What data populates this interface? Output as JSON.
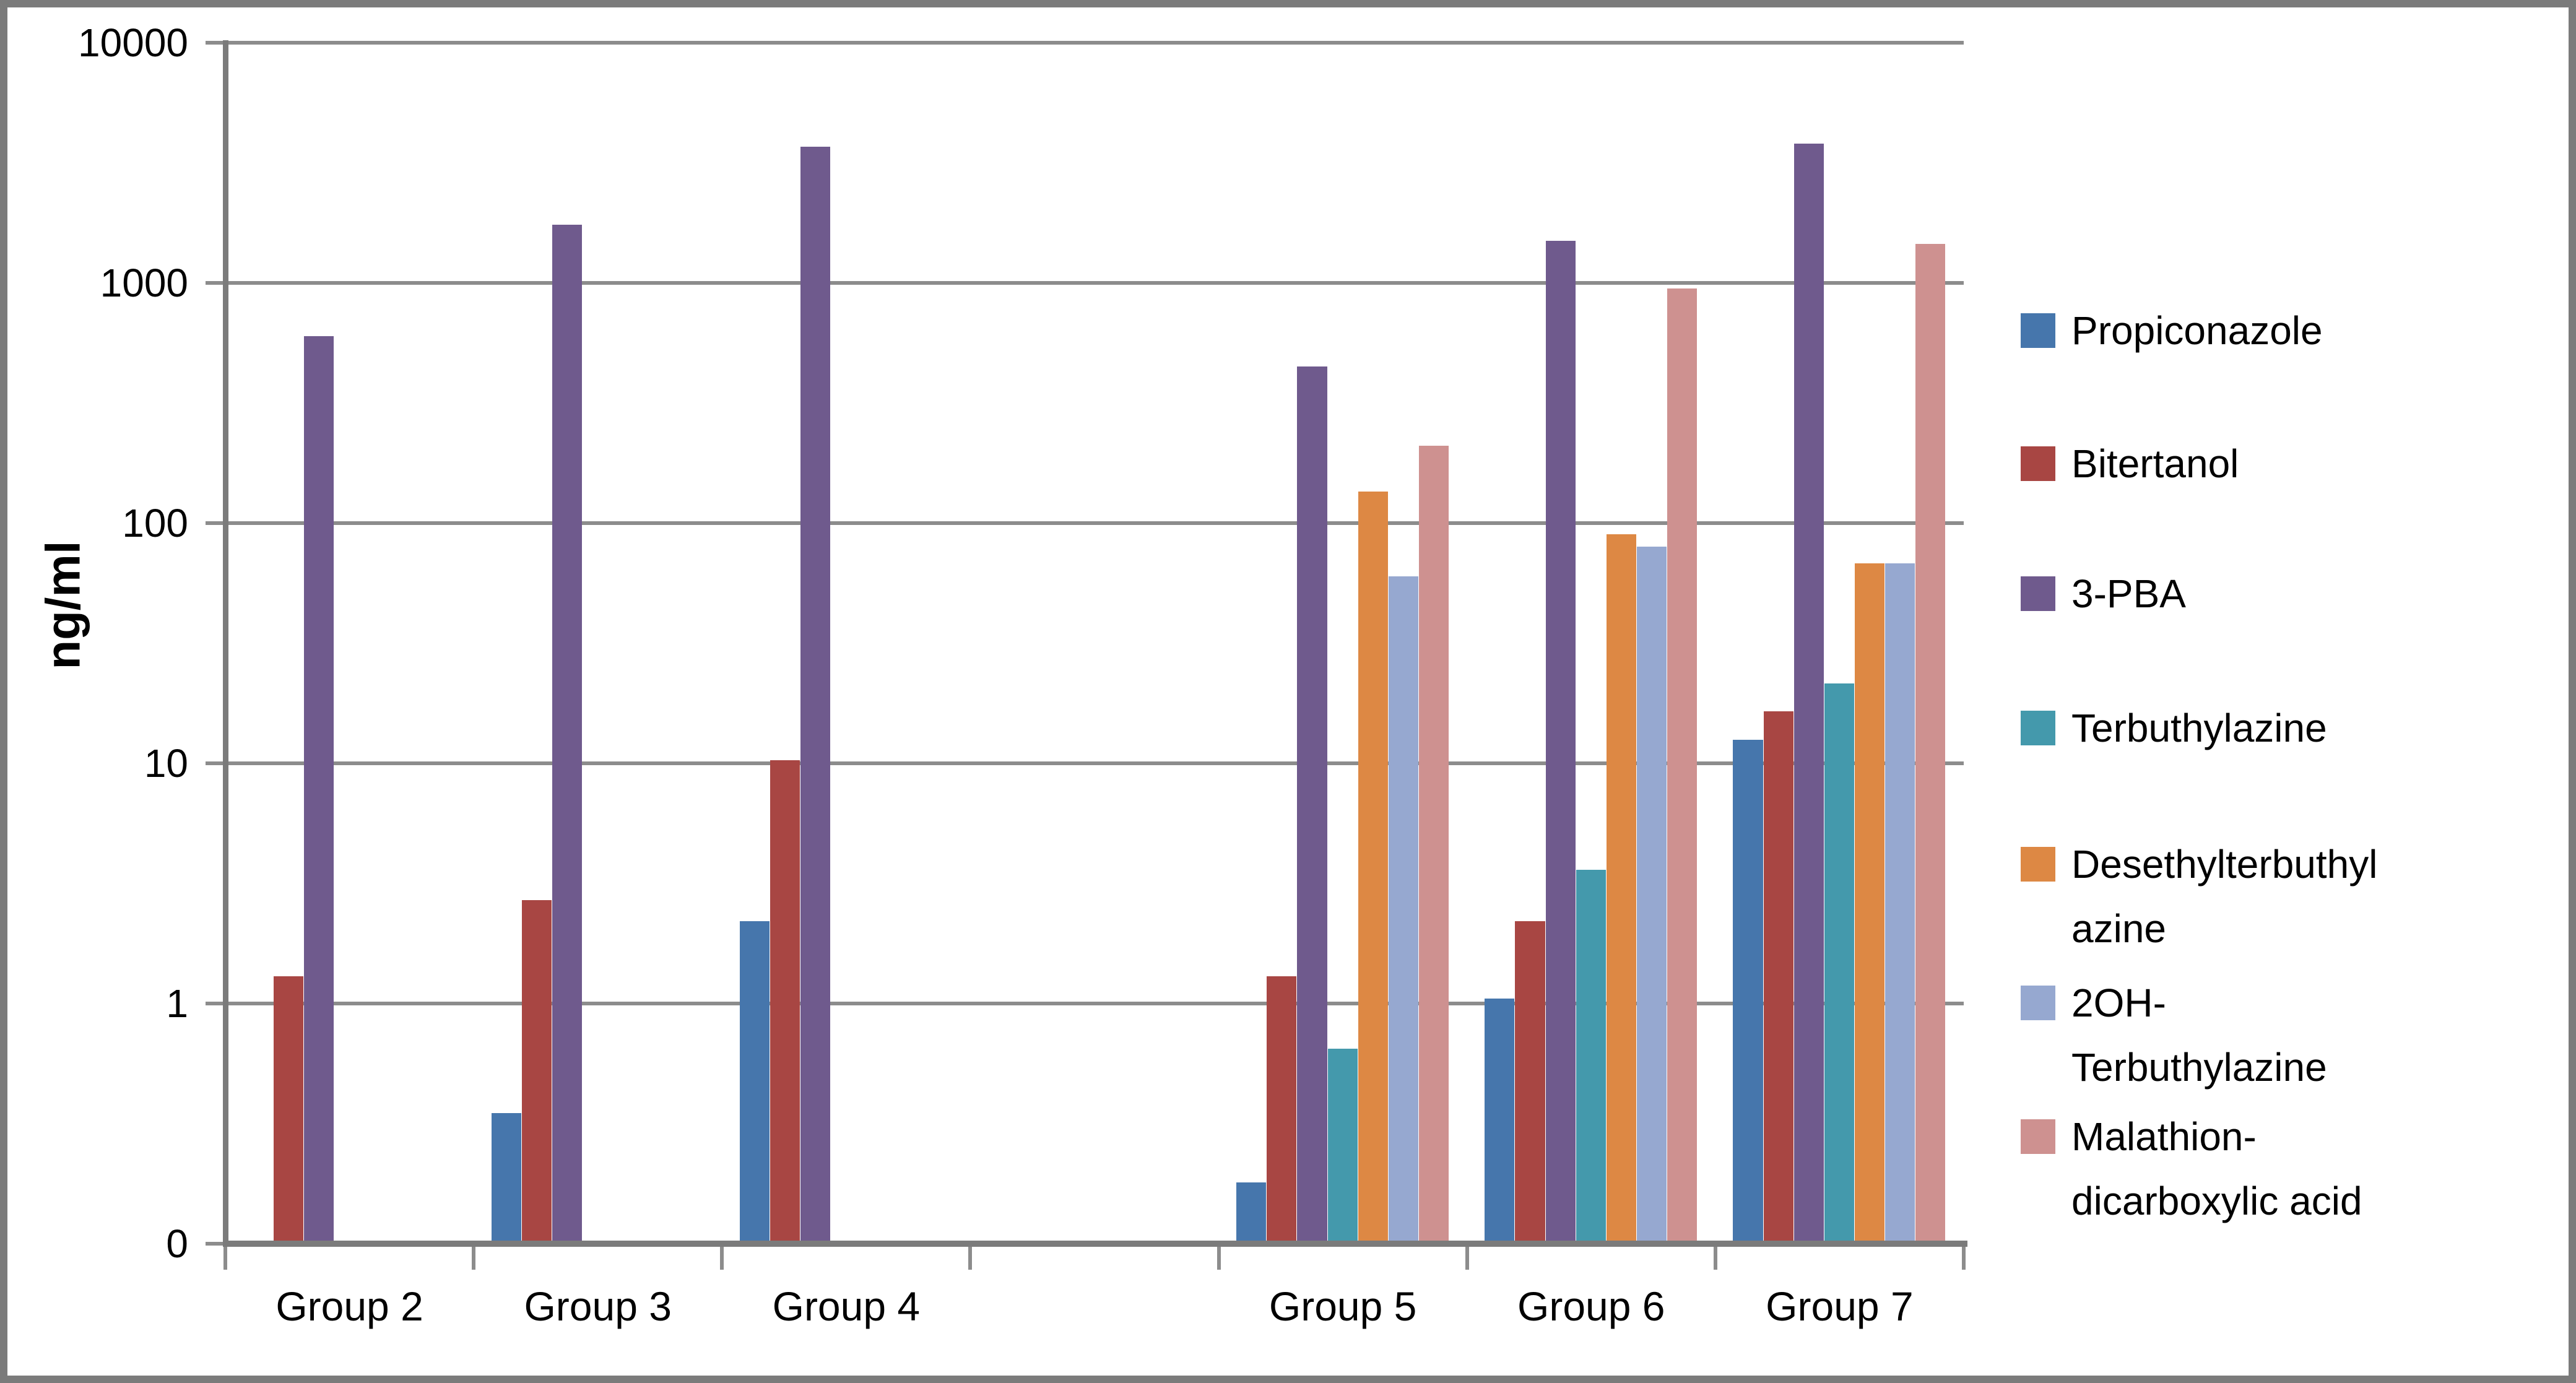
{
  "chart_data": {
    "type": "bar",
    "title": "",
    "xlabel": "",
    "ylabel": "ng/ml",
    "y_axis": {
      "scale": "log",
      "min": 0.1,
      "max": 10000,
      "tick_labels": [
        "10000",
        "1000",
        "100",
        "10",
        "1",
        "0"
      ],
      "tick_values": [
        10000,
        1000,
        100,
        10,
        1,
        0.1
      ]
    },
    "grid": true,
    "legend_position": "right",
    "categories": [
      "Group 2",
      "Group 3",
      "Group 4",
      "",
      "Group 5",
      "Group 6",
      "Group 7"
    ],
    "series": [
      {
        "name": "Propiconazole",
        "legend_lines": [
          "Propiconazole"
        ],
        "color": "#4676AC",
        "values": [
          null,
          0.35,
          2.2,
          null,
          0.18,
          1.05,
          12.5
        ]
      },
      {
        "name": "Bitertanol",
        "legend_lines": [
          "Bitertanol"
        ],
        "color": "#A84643",
        "values": [
          1.3,
          2.7,
          10.3,
          null,
          1.3,
          2.2,
          16.5
        ]
      },
      {
        "name": "3-PBA",
        "legend_lines": [
          "3-PBA"
        ],
        "color": "#6F5A8D",
        "values": [
          600,
          1750,
          3700,
          null,
          450,
          1500,
          3800
        ]
      },
      {
        "name": "Terbuthylazine",
        "legend_lines": [
          "Terbuthylazine"
        ],
        "color": "#4499AC",
        "values": [
          null,
          null,
          null,
          null,
          0.65,
          3.6,
          21.5
        ]
      },
      {
        "name": "Desethylterbuthylazine",
        "legend_lines": [
          "Desethylterbuthyl",
          "azine"
        ],
        "color": "#DD8844",
        "values": [
          null,
          null,
          null,
          null,
          135,
          90,
          68
        ]
      },
      {
        "name": "2OH-Terbuthylazine",
        "legend_lines": [
          "2OH-",
          "Terbuthylazine"
        ],
        "color": "#96A8D0",
        "values": [
          null,
          null,
          null,
          null,
          60,
          80,
          68
        ]
      },
      {
        "name": "Malathion-dicarboxylic acid",
        "legend_lines": [
          "Malathion-",
          "dicarboxylic acid"
        ],
        "color": "#CE9190",
        "values": [
          null,
          null,
          null,
          null,
          210,
          950,
          1450
        ]
      }
    ],
    "colors": {
      "gridline": "#8C8C8C",
      "axis": "#7B7B7B",
      "border": "#7B7B7B",
      "background": "#FFFFFF",
      "text": "#000000"
    }
  }
}
